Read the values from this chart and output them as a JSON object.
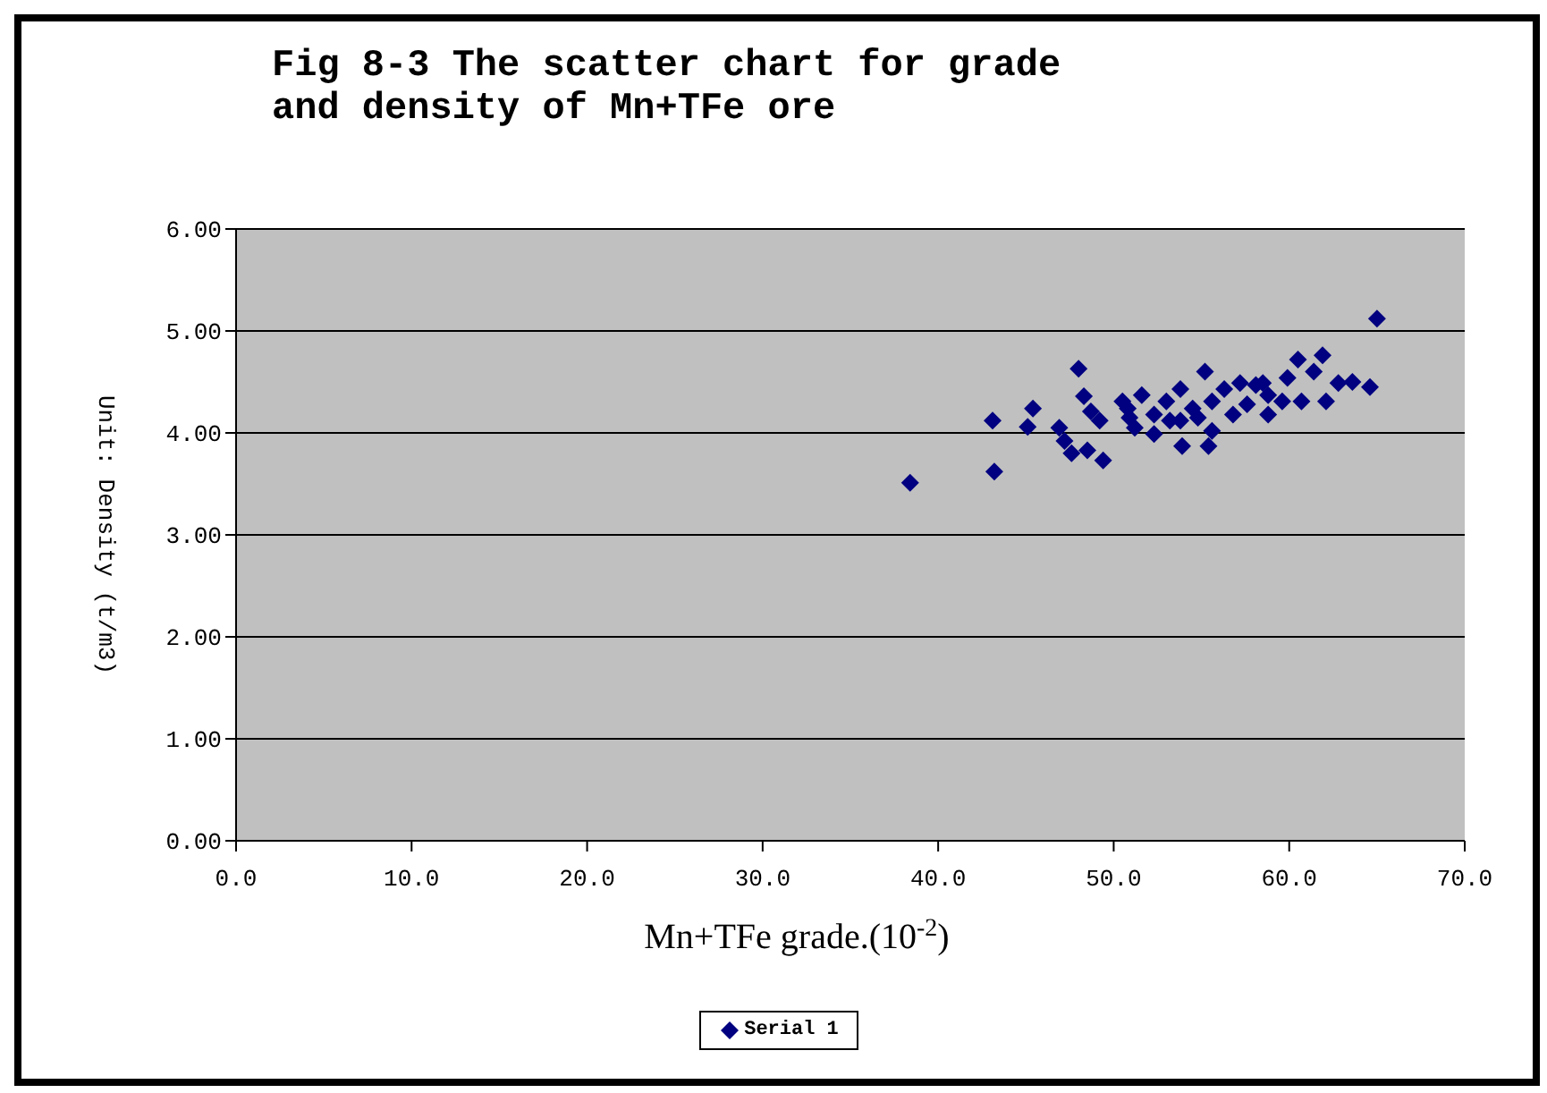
{
  "chart_data": {
    "type": "scatter",
    "title": "Fig 8-3 The scatter chart for grade and density of Mn+TFe ore",
    "xlabel": "Mn+TFe grade.(10$^{-2}$)",
    "ylabel": "Unit: Density (t/m3)",
    "xlim": [
      0,
      70
    ],
    "xticks": [
      {
        "value": 0,
        "label": "0.0"
      },
      {
        "value": 10,
        "label": "10.0"
      },
      {
        "value": 20,
        "label": "20.0"
      },
      {
        "value": 30,
        "label": "30.0"
      },
      {
        "value": 40,
        "label": "40.0"
      },
      {
        "value": 50,
        "label": "50.0"
      },
      {
        "value": 60,
        "label": "60.0"
      },
      {
        "value": 70,
        "label": "70.0"
      }
    ],
    "ylim": [
      0,
      6
    ],
    "yticks": [
      {
        "value": 0,
        "label": "0.00"
      },
      {
        "value": 1,
        "label": "1.00"
      },
      {
        "value": 2,
        "label": "2.00"
      },
      {
        "value": 3,
        "label": "3.00"
      },
      {
        "value": 4,
        "label": "4.00"
      },
      {
        "value": 5,
        "label": "5.00"
      },
      {
        "value": 6,
        "label": "6.00"
      }
    ],
    "grid": "y",
    "legend": "bottom",
    "marker": "diamond",
    "series": [
      {
        "name": "Serial 1",
        "color": "#000080",
        "x": [
          38.4,
          43.1,
          43.2,
          45.4,
          45.1,
          48.0,
          48.3,
          48.7,
          46.9,
          47.2,
          47.6,
          48.5,
          49.4,
          49.2,
          50.5,
          50.9,
          51.6,
          51.2,
          52.3,
          52.3,
          53.0,
          53.8,
          53.8,
          53.9,
          54.5,
          55.2,
          55.6,
          55.4,
          55.6,
          56.3,
          56.8,
          57.2,
          57.6,
          58.1,
          58.5,
          58.8,
          59.6,
          59.9,
          60.5,
          60.7,
          61.4,
          61.9,
          62.1,
          62.8,
          63.6,
          64.6,
          65.0,
          50.8,
          53.2,
          54.8,
          58.8
        ],
        "values": [
          3.51,
          4.12,
          3.62,
          4.24,
          4.06,
          4.63,
          4.36,
          4.21,
          4.05,
          3.92,
          3.8,
          3.83,
          3.73,
          4.12,
          4.31,
          4.15,
          4.37,
          4.05,
          4.18,
          3.99,
          4.31,
          4.43,
          4.12,
          3.87,
          4.24,
          4.6,
          4.31,
          3.87,
          4.02,
          4.43,
          4.18,
          4.49,
          4.28,
          4.47,
          4.49,
          4.37,
          4.31,
          4.54,
          4.72,
          4.31,
          4.6,
          4.76,
          4.31,
          4.49,
          4.5,
          4.45,
          5.12,
          4.24,
          4.12,
          4.15,
          4.18
        ]
      }
    ]
  }
}
